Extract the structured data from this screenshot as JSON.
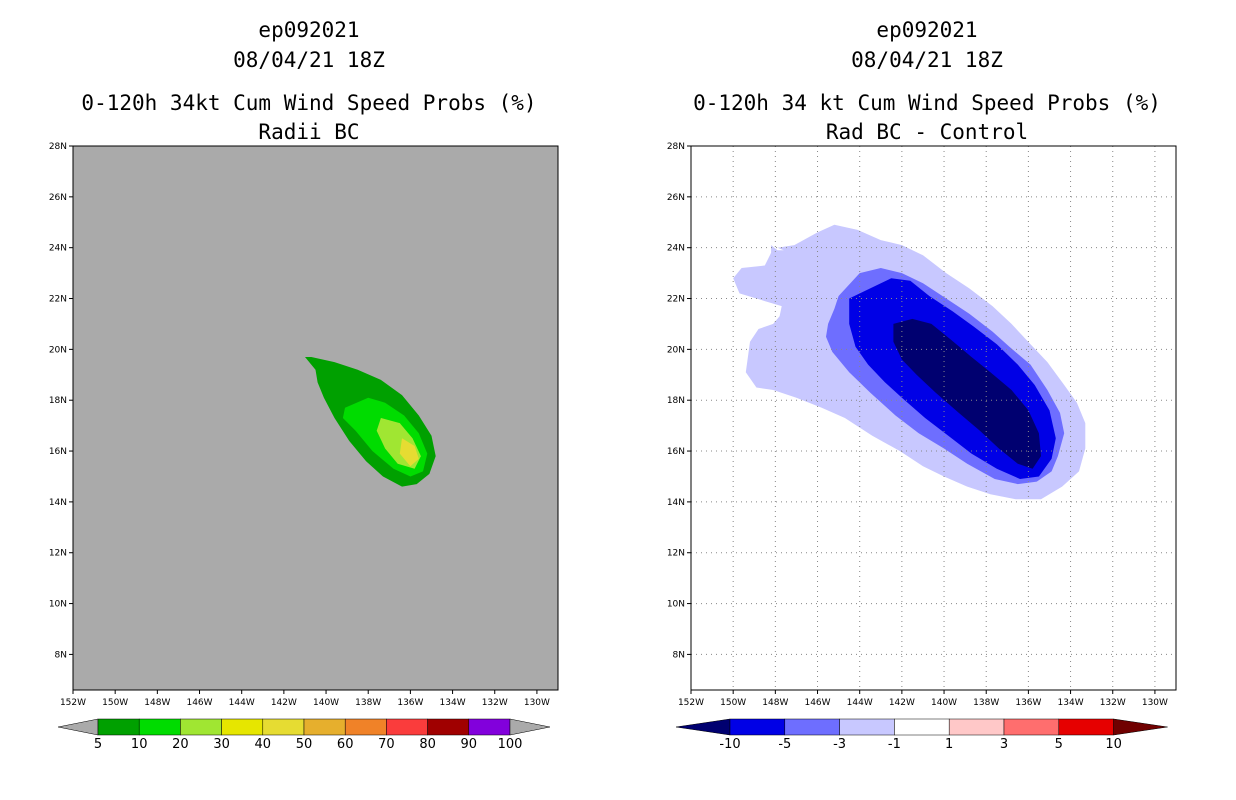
{
  "chart_data": [
    {
      "type": "contour-map",
      "title": "ep092021",
      "subtitle": "08/04/21 18Z",
      "plot_title": "0-120h 34kt Cum Wind Speed Probs (%)",
      "plot_subtitle": "Radii BC",
      "xlim": [
        -152,
        -129
      ],
      "ylim": [
        6.6,
        28
      ],
      "x_ticks": [
        {
          "value": -152,
          "label": "152W"
        },
        {
          "value": -150,
          "label": "150W"
        },
        {
          "value": -148,
          "label": "148W"
        },
        {
          "value": -146,
          "label": "146W"
        },
        {
          "value": -144,
          "label": "144W"
        },
        {
          "value": -142,
          "label": "142W"
        },
        {
          "value": -140,
          "label": "140W"
        },
        {
          "value": -138,
          "label": "138W"
        },
        {
          "value": -136,
          "label": "136W"
        },
        {
          "value": -134,
          "label": "134W"
        },
        {
          "value": -132,
          "label": "132W"
        },
        {
          "value": -130,
          "label": "130W"
        }
      ],
      "y_ticks": [
        {
          "value": 8,
          "label": "8N"
        },
        {
          "value": 10,
          "label": "10N"
        },
        {
          "value": 12,
          "label": "12N"
        },
        {
          "value": 14,
          "label": "14N"
        },
        {
          "value": 16,
          "label": "16N"
        },
        {
          "value": 18,
          "label": "18N"
        },
        {
          "value": 20,
          "label": "20N"
        },
        {
          "value": 22,
          "label": "22N"
        },
        {
          "value": 24,
          "label": "24N"
        },
        {
          "value": 26,
          "label": "26N"
        },
        {
          "value": 28,
          "label": "28N"
        }
      ],
      "grid": false,
      "background_color": "#aaaaaa",
      "contours": [
        {
          "level": "5-10",
          "color": "#00a000",
          "points": [
            [
              -140.7,
              19.7
            ],
            [
              -139.6,
              19.5
            ],
            [
              -138.5,
              19.2
            ],
            [
              -137.4,
              18.8
            ],
            [
              -136.4,
              18.2
            ],
            [
              -135.6,
              17.4
            ],
            [
              -135.0,
              16.6
            ],
            [
              -134.8,
              15.8
            ],
            [
              -135.1,
              15.1
            ],
            [
              -135.7,
              14.7
            ],
            [
              -136.4,
              14.6
            ],
            [
              -137.3,
              15.0
            ],
            [
              -138.1,
              15.6
            ],
            [
              -138.9,
              16.4
            ],
            [
              -139.6,
              17.3
            ],
            [
              -140.1,
              18.1
            ],
            [
              -140.4,
              18.7
            ],
            [
              -140.5,
              19.2
            ],
            [
              -141.0,
              19.7
            ]
          ]
        },
        {
          "level": "10-20",
          "color": "#00dc00",
          "points": [
            [
              -139.1,
              17.7
            ],
            [
              -138.0,
              18.1
            ],
            [
              -137.2,
              17.9
            ],
            [
              -136.3,
              17.4
            ],
            [
              -135.6,
              16.7
            ],
            [
              -135.2,
              15.9
            ],
            [
              -135.4,
              15.2
            ],
            [
              -136.0,
              15.0
            ],
            [
              -136.8,
              15.3
            ],
            [
              -137.8,
              16.0
            ],
            [
              -138.6,
              16.8
            ],
            [
              -139.2,
              17.3
            ]
          ]
        },
        {
          "level": "20-30",
          "color": "#a0e632",
          "points": [
            [
              -137.4,
              17.3
            ],
            [
              -136.5,
              17.1
            ],
            [
              -135.9,
              16.5
            ],
            [
              -135.5,
              15.8
            ],
            [
              -135.8,
              15.3
            ],
            [
              -136.6,
              15.5
            ],
            [
              -137.2,
              16.1
            ],
            [
              -137.6,
              16.8
            ]
          ]
        },
        {
          "level": "30-40",
          "color": "#e6dc32",
          "points": [
            [
              -136.4,
              16.5
            ],
            [
              -135.8,
              16.2
            ],
            [
              -135.6,
              15.7
            ],
            [
              -136.0,
              15.4
            ],
            [
              -136.5,
              15.9
            ]
          ]
        }
      ],
      "colorbar": {
        "labels": [
          "5",
          "10",
          "20",
          "30",
          "40",
          "50",
          "60",
          "70",
          "80",
          "90",
          "100"
        ],
        "colors": [
          "#00a000",
          "#00dc00",
          "#a0e632",
          "#e6e600",
          "#e6dc32",
          "#e6af2d",
          "#f08228",
          "#fa3c3c",
          "#a00000",
          "#8200dc"
        ],
        "under_color": "#aaaaaa",
        "over_color": "#aaaaaa"
      }
    },
    {
      "type": "contour-map",
      "title": "ep092021",
      "subtitle": "08/04/21 18Z",
      "plot_title": "0-120h 34 kt Cum Wind Speed Probs (%)",
      "plot_subtitle": "Rad BC - Control",
      "xlim": [
        -152,
        -129
      ],
      "ylim": [
        6.6,
        28
      ],
      "x_ticks": [
        {
          "value": -152,
          "label": "152W"
        },
        {
          "value": -150,
          "label": "150W"
        },
        {
          "value": -148,
          "label": "148W"
        },
        {
          "value": -146,
          "label": "146W"
        },
        {
          "value": -144,
          "label": "144W"
        },
        {
          "value": -142,
          "label": "142W"
        },
        {
          "value": -140,
          "label": "140W"
        },
        {
          "value": -138,
          "label": "138W"
        },
        {
          "value": -136,
          "label": "136W"
        },
        {
          "value": -134,
          "label": "134W"
        },
        {
          "value": -132,
          "label": "132W"
        },
        {
          "value": -130,
          "label": "130W"
        }
      ],
      "y_ticks": [
        {
          "value": 8,
          "label": "8N"
        },
        {
          "value": 10,
          "label": "10N"
        },
        {
          "value": 12,
          "label": "12N"
        },
        {
          "value": 14,
          "label": "14N"
        },
        {
          "value": 16,
          "label": "16N"
        },
        {
          "value": 18,
          "label": "18N"
        },
        {
          "value": 20,
          "label": "20N"
        },
        {
          "value": 22,
          "label": "22N"
        },
        {
          "value": 24,
          "label": "24N"
        },
        {
          "value": 26,
          "label": "26N"
        },
        {
          "value": 28,
          "label": "28N"
        }
      ],
      "grid": true,
      "background_color": "#ffffff",
      "contours": [
        {
          "level": "-3 to -1",
          "color": "#c8c8ff",
          "points": [
            [
              -148.2,
              24.1
            ],
            [
              -147.9,
              23.9
            ],
            [
              -147.6,
              23.9
            ],
            [
              -147.9,
              24.0
            ],
            [
              -147.1,
              24.1
            ],
            [
              -146.0,
              24.6
            ],
            [
              -145.2,
              24.9
            ],
            [
              -144.1,
              24.7
            ],
            [
              -143.0,
              24.3
            ],
            [
              -142.0,
              24.1
            ],
            [
              -141.0,
              23.7
            ],
            [
              -139.9,
              23.0
            ],
            [
              -138.8,
              22.4
            ],
            [
              -137.7,
              21.7
            ],
            [
              -136.8,
              21.0
            ],
            [
              -135.9,
              20.2
            ],
            [
              -135.1,
              19.5
            ],
            [
              -134.3,
              18.6
            ],
            [
              -133.7,
              17.9
            ],
            [
              -133.3,
              17.1
            ],
            [
              -133.3,
              16.1
            ],
            [
              -133.6,
              15.2
            ],
            [
              -134.4,
              14.6
            ],
            [
              -135.4,
              14.1
            ],
            [
              -136.6,
              14.1
            ],
            [
              -137.8,
              14.3
            ],
            [
              -138.9,
              14.6
            ],
            [
              -140.0,
              15.0
            ],
            [
              -141.0,
              15.4
            ],
            [
              -142.1,
              16.0
            ],
            [
              -143.4,
              16.6
            ],
            [
              -144.7,
              17.3
            ],
            [
              -145.8,
              17.7
            ],
            [
              -147.0,
              18.1
            ],
            [
              -148.1,
              18.4
            ],
            [
              -148.9,
              18.5
            ],
            [
              -149.4,
              19.1
            ],
            [
              -149.3,
              19.7
            ],
            [
              -149.2,
              20.3
            ],
            [
              -148.8,
              20.8
            ],
            [
              -148.1,
              21.0
            ],
            [
              -147.8,
              21.3
            ],
            [
              -147.7,
              21.7
            ],
            [
              -148.5,
              21.9
            ],
            [
              -149.7,
              22.2
            ],
            [
              -150.0,
              22.8
            ],
            [
              -149.6,
              23.2
            ],
            [
              -148.5,
              23.3
            ],
            [
              -148.2,
              23.8
            ]
          ]
        },
        {
          "level": "-5 to -3",
          "color": "#6e6eff",
          "points": [
            [
              -145.0,
              22.1
            ],
            [
              -144.0,
              23.0
            ],
            [
              -143.0,
              23.2
            ],
            [
              -142.0,
              23.0
            ],
            [
              -141.0,
              22.6
            ],
            [
              -139.9,
              22.0
            ],
            [
              -138.8,
              21.4
            ],
            [
              -137.7,
              20.7
            ],
            [
              -136.9,
              20.1
            ],
            [
              -135.9,
              19.4
            ],
            [
              -135.1,
              18.4
            ],
            [
              -134.5,
              17.5
            ],
            [
              -134.3,
              16.7
            ],
            [
              -134.6,
              15.8
            ],
            [
              -134.9,
              15.2
            ],
            [
              -135.6,
              14.8
            ],
            [
              -136.5,
              14.7
            ],
            [
              -137.6,
              14.9
            ],
            [
              -138.9,
              15.5
            ],
            [
              -140.0,
              16.1
            ],
            [
              -141.2,
              16.7
            ],
            [
              -142.3,
              17.4
            ],
            [
              -143.5,
              18.3
            ],
            [
              -144.5,
              19.1
            ],
            [
              -145.3,
              19.9
            ],
            [
              -145.6,
              20.5
            ],
            [
              -145.5,
              21.0
            ],
            [
              -145.2,
              21.6
            ]
          ]
        },
        {
          "level": "-10 to -5",
          "color": "#0000e6",
          "points": [
            [
              -144.5,
              22.0
            ],
            [
              -143.5,
              22.4
            ],
            [
              -142.5,
              22.8
            ],
            [
              -141.6,
              22.7
            ],
            [
              -140.7,
              22.1
            ],
            [
              -139.6,
              21.5
            ],
            [
              -138.6,
              20.9
            ],
            [
              -137.5,
              20.2
            ],
            [
              -136.5,
              19.4
            ],
            [
              -135.7,
              18.6
            ],
            [
              -135.0,
              17.6
            ],
            [
              -134.7,
              16.5
            ],
            [
              -134.9,
              15.7
            ],
            [
              -135.5,
              15.0
            ],
            [
              -136.4,
              14.9
            ],
            [
              -137.5,
              15.3
            ],
            [
              -138.7,
              15.9
            ],
            [
              -139.8,
              16.6
            ],
            [
              -140.9,
              17.3
            ],
            [
              -142.0,
              18.1
            ],
            [
              -142.8,
              18.7
            ],
            [
              -143.6,
              19.4
            ],
            [
              -144.2,
              20.1
            ],
            [
              -144.5,
              21.0
            ]
          ]
        },
        {
          "level": "below -10",
          "color": "#000070",
          "points": [
            [
              -142.4,
              21.0
            ],
            [
              -141.5,
              21.2
            ],
            [
              -140.6,
              21.0
            ],
            [
              -139.7,
              20.4
            ],
            [
              -138.7,
              19.7
            ],
            [
              -137.8,
              19.1
            ],
            [
              -136.8,
              18.4
            ],
            [
              -136.0,
              17.6
            ],
            [
              -135.5,
              16.7
            ],
            [
              -135.4,
              15.8
            ],
            [
              -135.8,
              15.3
            ],
            [
              -136.5,
              15.5
            ],
            [
              -137.4,
              16.1
            ],
            [
              -138.3,
              16.8
            ],
            [
              -139.3,
              17.5
            ],
            [
              -140.4,
              18.3
            ],
            [
              -141.3,
              19.0
            ],
            [
              -142.0,
              19.6
            ],
            [
              -142.4,
              20.3
            ]
          ]
        }
      ],
      "colorbar": {
        "labels": [
          "-10",
          "-5",
          "-3",
          "-1",
          "1",
          "3",
          "5",
          "10"
        ],
        "colors": [
          "#0000e6",
          "#6e6eff",
          "#c8c8ff",
          "#ffffff",
          "#ffc8c8",
          "#ff6e6e",
          "#e60000"
        ],
        "under_color": "#000070",
        "over_color": "#700000"
      }
    }
  ]
}
